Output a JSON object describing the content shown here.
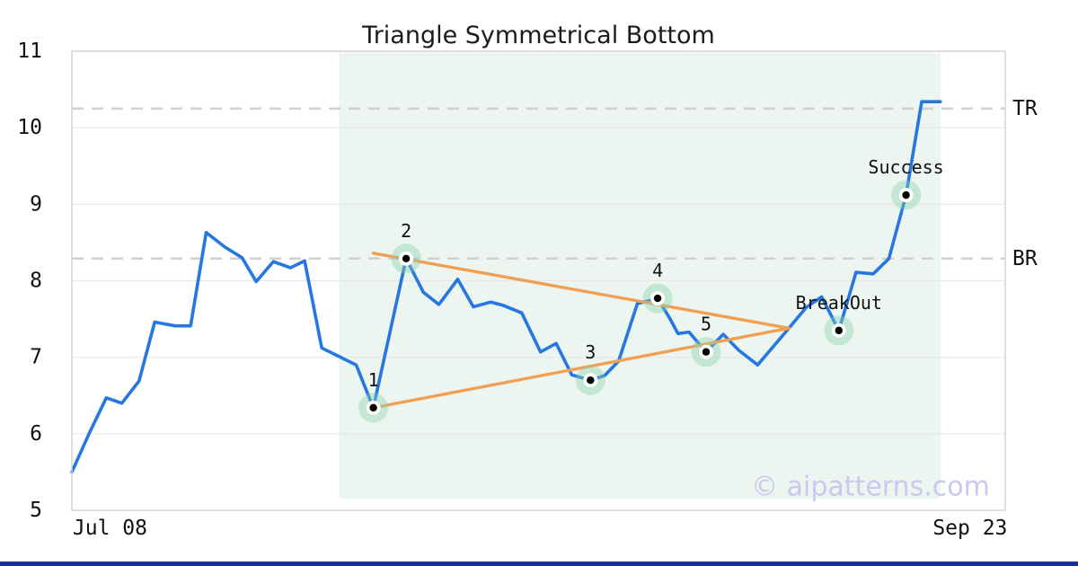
{
  "chart_data": {
    "type": "line",
    "title": "Triangle Symmetrical Bottom",
    "xlabel": "",
    "ylabel": "",
    "xlim": [
      0,
      59.75
    ],
    "ylim": [
      5,
      11
    ],
    "grid": "horizontal-only",
    "y_ticks": [
      {
        "value": 5,
        "label": "5"
      },
      {
        "value": 6,
        "label": "6"
      },
      {
        "value": 7,
        "label": "7"
      },
      {
        "value": 8,
        "label": "8"
      },
      {
        "value": 9,
        "label": "9"
      },
      {
        "value": 10,
        "label": "10"
      },
      {
        "value": 11,
        "label": "11"
      }
    ],
    "grid_values": [
      6,
      7,
      8,
      9,
      10
    ],
    "x_ticks": [
      {
        "x": 2.44,
        "label": "Jul 08"
      },
      {
        "x": 57.5,
        "label": "Sep 23"
      }
    ],
    "series": [
      {
        "name": "price",
        "color": "#2777e0",
        "points": [
          [
            0,
            5.5
          ],
          [
            1.1,
            6.0
          ],
          [
            2.2,
            6.47
          ],
          [
            3.2,
            6.4
          ],
          [
            4.3,
            6.69
          ],
          [
            5.3,
            7.46
          ],
          [
            6.6,
            7.41
          ],
          [
            7.6,
            7.41
          ],
          [
            8.6,
            8.63
          ],
          [
            9.8,
            8.44
          ],
          [
            10.9,
            8.3
          ],
          [
            11.8,
            7.99
          ],
          [
            12.9,
            8.25
          ],
          [
            14.0,
            8.17
          ],
          [
            14.9,
            8.26
          ],
          [
            16.0,
            7.12
          ],
          [
            17.1,
            7.01
          ],
          [
            18.2,
            6.9
          ],
          [
            19.3,
            6.34
          ],
          [
            21.4,
            8.29
          ],
          [
            22.5,
            7.85
          ],
          [
            23.5,
            7.69
          ],
          [
            24.7,
            8.02
          ],
          [
            25.7,
            7.66
          ],
          [
            26.8,
            7.72
          ],
          [
            27.6,
            7.68
          ],
          [
            28.8,
            7.58
          ],
          [
            30.0,
            7.07
          ],
          [
            31.0,
            7.18
          ],
          [
            32.0,
            6.77
          ],
          [
            33.2,
            6.7
          ],
          [
            34.1,
            6.76
          ],
          [
            35.0,
            6.95
          ],
          [
            36.2,
            7.7
          ],
          [
            37.5,
            7.77
          ],
          [
            38.3,
            7.5
          ],
          [
            38.8,
            7.31
          ],
          [
            39.5,
            7.33
          ],
          [
            40.6,
            7.07
          ],
          [
            41.7,
            7.3
          ],
          [
            42.7,
            7.09
          ],
          [
            43.9,
            6.9
          ],
          [
            45.9,
            7.38
          ],
          [
            47.0,
            7.65
          ],
          [
            48.0,
            7.79
          ],
          [
            49.1,
            7.35
          ],
          [
            50.2,
            8.11
          ],
          [
            51.3,
            8.09
          ],
          [
            52.3,
            8.29
          ],
          [
            53.4,
            9.12
          ],
          [
            54.4,
            10.34
          ],
          [
            55.6,
            10.34
          ]
        ]
      }
    ],
    "trendlines": [
      {
        "name": "upper",
        "from": [
          19.3,
          8.36
        ],
        "to": [
          45.9,
          7.38
        ]
      },
      {
        "name": "lower",
        "from": [
          19.3,
          6.34
        ],
        "to": [
          45.9,
          7.38
        ]
      }
    ],
    "levels": [
      {
        "label": "TR",
        "value": 10.25
      },
      {
        "label": "BR",
        "value": 8.29
      }
    ],
    "pattern_zone": {
      "x0": 17.1,
      "x1": 55.6,
      "v_top": 10.98,
      "v_bottom": 5.15
    },
    "annotations": [
      {
        "label": "1",
        "x": 19.3,
        "v": 6.34
      },
      {
        "label": "2",
        "x": 21.4,
        "v": 8.29
      },
      {
        "label": "3",
        "x": 33.2,
        "v": 6.7
      },
      {
        "label": "4",
        "x": 37.5,
        "v": 7.77
      },
      {
        "label": "5",
        "x": 40.6,
        "v": 7.07
      },
      {
        "label": "BreakOut",
        "x": 49.1,
        "v": 7.35
      },
      {
        "label": "Success",
        "x": 53.4,
        "v": 9.12
      }
    ],
    "watermark": "© aipatterns.com",
    "legend": "none",
    "colors": {
      "line": "#2777e0",
      "trendline": "#f0a055",
      "zone": "#ecf5f0",
      "halo": "rgba(137,208,169,0.40)",
      "grid": "#e8e8e8",
      "border": "#d4d4d4",
      "dash": "#d0d0d0",
      "tick_text": "#111111",
      "annotation_text": "#111111",
      "title_text": "#1c1c1c",
      "watermark_text": "#c9c9ee",
      "marker_dot": "#000000",
      "marker_ring": "#ffffff",
      "bottom_bar": "#1a2f9e"
    }
  }
}
